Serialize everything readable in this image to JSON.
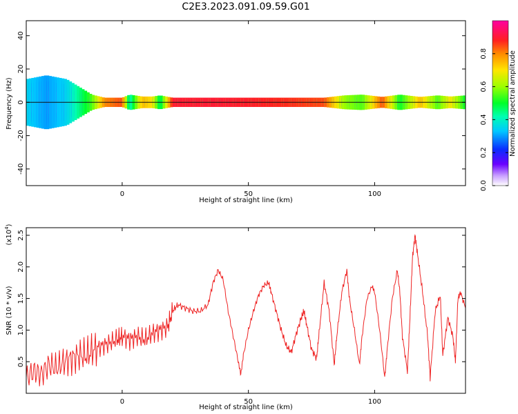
{
  "title": "C2E3.2023.091.09.59.G01",
  "colors": {
    "snr_line": "#ee2222",
    "trace_line": "#111111",
    "axis": "#000000"
  },
  "chart_data": [
    {
      "type": "heatmap",
      "xlabel": "Height of straight line (km)",
      "ylabel": "Frequency (Hz)",
      "xlim": [
        -38,
        136
      ],
      "ylim": [
        -50,
        49
      ],
      "x_ticks": [
        "0",
        "50",
        "100"
      ],
      "x_tick_values": [
        0,
        50,
        100
      ],
      "y_ticks": [
        "40",
        "20",
        "0",
        "-20",
        "-40"
      ],
      "y_tick_values": [
        40,
        20,
        0,
        -20,
        -40
      ],
      "trace_frequency": 0,
      "colorbar": {
        "label": "Normalized spectral amplitude",
        "range": [
          0,
          1
        ],
        "ticks": [
          "0.0",
          "0.2",
          "0.4",
          "0.6",
          "0.8"
        ],
        "tick_values": [
          0,
          0.2,
          0.4,
          0.6,
          0.8
        ],
        "colormap": "rainbow (white-violet-blue-cyan-green-yellow-red-magenta)"
      },
      "amplitude_profile": [
        {
          "x": -38,
          "amp": 0.35,
          "spread": 6
        },
        {
          "x": -30,
          "amp": 0.3,
          "spread": 7
        },
        {
          "x": -22,
          "amp": 0.35,
          "spread": 6
        },
        {
          "x": -17,
          "amp": 0.45,
          "spread": 4
        },
        {
          "x": -12,
          "amp": 0.55,
          "spread": 2
        },
        {
          "x": -7,
          "amp": 0.8,
          "spread": 1.2
        },
        {
          "x": 0,
          "amp": 0.85,
          "spread": 1.2
        },
        {
          "x": 3,
          "amp": 0.4,
          "spread": 2
        },
        {
          "x": 8,
          "amp": 0.75,
          "spread": 1.5
        },
        {
          "x": 12,
          "amp": 0.7,
          "spread": 1.5
        },
        {
          "x": 15,
          "amp": 0.45,
          "spread": 1.8
        },
        {
          "x": 20,
          "amp": 0.9,
          "spread": 1.2
        },
        {
          "x": 40,
          "amp": 0.9,
          "spread": 1.2
        },
        {
          "x": 60,
          "amp": 0.88,
          "spread": 1.2
        },
        {
          "x": 80,
          "amp": 0.85,
          "spread": 1.2
        },
        {
          "x": 88,
          "amp": 0.6,
          "spread": 1.8
        },
        {
          "x": 95,
          "amp": 0.55,
          "spread": 2
        },
        {
          "x": 103,
          "amp": 0.85,
          "spread": 1.4
        },
        {
          "x": 110,
          "amp": 0.5,
          "spread": 2
        },
        {
          "x": 118,
          "amp": 0.75,
          "spread": 1.4
        },
        {
          "x": 125,
          "amp": 0.55,
          "spread": 1.8
        },
        {
          "x": 130,
          "amp": 0.7,
          "spread": 1.5
        },
        {
          "x": 136,
          "amp": 0.5,
          "spread": 1.8
        }
      ]
    },
    {
      "type": "line",
      "xlabel": "Height of straight line (km)",
      "ylabel": "SNR (10 * v/v)",
      "y_multiplier_label": "(x10",
      "y_multiplier_exp": "4",
      "y_multiplier_close": ")",
      "xlim": [
        -38,
        136
      ],
      "ylim": [
        0,
        2.62
      ],
      "x_ticks": [
        "0",
        "50",
        "100"
      ],
      "x_tick_values": [
        0,
        50,
        100
      ],
      "y_ticks": [
        "0.5",
        "1.0",
        "1.5",
        "2.0",
        "2.5"
      ],
      "y_tick_values": [
        0.5,
        1.0,
        1.5,
        2.0,
        2.5
      ],
      "series": [
        {
          "x": [
            -38,
            -35,
            -32,
            -29,
            -26,
            -23,
            -20,
            -17,
            -14,
            -11,
            -8,
            -5,
            -2,
            0,
            3,
            6,
            9,
            12,
            15,
            18,
            20,
            22,
            25,
            28,
            31,
            34,
            36,
            38,
            40,
            42,
            44,
            46,
            47,
            48,
            50,
            52,
            54,
            56,
            58,
            59,
            61,
            63,
            65,
            67,
            69,
            71,
            72,
            73,
            75,
            77,
            78,
            80,
            82,
            84,
            85,
            87,
            89,
            90,
            92,
            94,
            95,
            97,
            99,
            100,
            102,
            104,
            105,
            107,
            109,
            110,
            111,
            113,
            114,
            115,
            116,
            117,
            119,
            121,
            122,
            124,
            126,
            127,
            129,
            131,
            132,
            133,
            134,
            136
          ],
          "y": [
            0.25,
            0.35,
            0.3,
            0.45,
            0.4,
            0.5,
            0.55,
            0.6,
            0.6,
            0.7,
            0.75,
            0.8,
            0.85,
            0.9,
            0.85,
            0.9,
            0.85,
            0.95,
            1.0,
            1.05,
            1.3,
            1.4,
            1.35,
            1.3,
            1.3,
            1.4,
            1.75,
            1.95,
            1.8,
            1.3,
            0.9,
            0.5,
            0.3,
            0.6,
            1.0,
            1.3,
            1.55,
            1.7,
            1.75,
            1.6,
            1.3,
            1.0,
            0.75,
            0.65,
            0.95,
            1.2,
            1.3,
            1.1,
            0.7,
            0.55,
            0.95,
            1.75,
            1.3,
            0.45,
            0.9,
            1.6,
            1.95,
            1.5,
            1.0,
            0.45,
            0.9,
            1.5,
            1.7,
            1.6,
            1.0,
            0.25,
            0.7,
            1.5,
            1.95,
            1.6,
            0.9,
            0.35,
            1.2,
            2.15,
            2.5,
            2.2,
            1.6,
            0.9,
            0.25,
            1.3,
            1.55,
            0.6,
            1.2,
            0.9,
            0.5,
            1.5,
            1.6,
            1.35
          ]
        }
      ]
    }
  ]
}
